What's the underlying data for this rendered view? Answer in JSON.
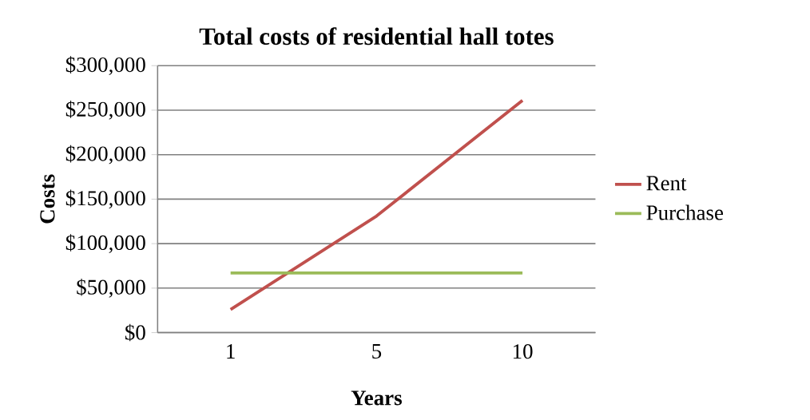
{
  "chart_data": {
    "type": "line",
    "title": "Total costs of residential hall totes",
    "xlabel": "Years",
    "ylabel": "Costs",
    "categories": [
      "1",
      "5",
      "10"
    ],
    "series": [
      {
        "name": "Rent",
        "color": "#c0504d",
        "values": [
          26000,
          131000,
          261000
        ]
      },
      {
        "name": "Purchase",
        "color": "#9bbb59",
        "values": [
          67000,
          67000,
          67000
        ]
      }
    ],
    "ylim": [
      0,
      300000
    ],
    "yticks": [
      {
        "value": 0,
        "label": "$0"
      },
      {
        "value": 50000,
        "label": "$50,000"
      },
      {
        "value": 100000,
        "label": "$100,000"
      },
      {
        "value": 150000,
        "label": "$150,000"
      },
      {
        "value": 200000,
        "label": "$200,000"
      },
      {
        "value": 250000,
        "label": "$250,000"
      },
      {
        "value": 300000,
        "label": "$300,000"
      }
    ],
    "grid": "y",
    "legend": "right",
    "marker": "none",
    "line_style": "solid"
  }
}
